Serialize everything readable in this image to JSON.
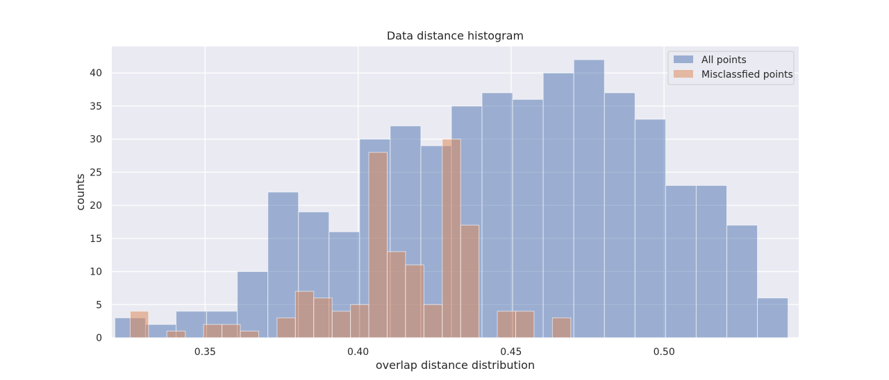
{
  "chart_data": {
    "type": "bar",
    "title": "Data distance histogram",
    "xlabel": "overlap distance distribution",
    "ylabel": "counts",
    "xlim": [
      0.3195,
      0.544
    ],
    "ylim": [
      0,
      44
    ],
    "x_ticks": [
      0.35,
      0.4,
      0.45,
      0.5
    ],
    "x_tick_labels": [
      "0.35",
      "0.40",
      "0.45",
      "0.50"
    ],
    "y_ticks": [
      0,
      5,
      10,
      15,
      20,
      25,
      30,
      35,
      40
    ],
    "y_tick_labels": [
      "0",
      "5",
      "10",
      "15",
      "20",
      "25",
      "30",
      "35",
      "40"
    ],
    "grid": true,
    "legend_position": "top-right",
    "colors": {
      "background": "#eaeaf2",
      "grid": "#ffffff",
      "all_points": "#4c72b0",
      "misclassified": "#dd8452"
    },
    "series": [
      {
        "name": "All points",
        "color": "#4c72b0",
        "bins": [
          {
            "x0": 0.3205,
            "x1": 0.3305,
            "count": 3
          },
          {
            "x0": 0.3305,
            "x1": 0.3405,
            "count": 2
          },
          {
            "x0": 0.3405,
            "x1": 0.3505,
            "count": 4
          },
          {
            "x0": 0.3505,
            "x1": 0.3605,
            "count": 4
          },
          {
            "x0": 0.3605,
            "x1": 0.3705,
            "count": 10
          },
          {
            "x0": 0.3705,
            "x1": 0.3805,
            "count": 22
          },
          {
            "x0": 0.3805,
            "x1": 0.3905,
            "count": 19
          },
          {
            "x0": 0.3905,
            "x1": 0.4005,
            "count": 16
          },
          {
            "x0": 0.4005,
            "x1": 0.4105,
            "count": 30
          },
          {
            "x0": 0.4105,
            "x1": 0.4205,
            "count": 32
          },
          {
            "x0": 0.4205,
            "x1": 0.4305,
            "count": 29
          },
          {
            "x0": 0.4305,
            "x1": 0.4405,
            "count": 35
          },
          {
            "x0": 0.4405,
            "x1": 0.4505,
            "count": 37
          },
          {
            "x0": 0.4505,
            "x1": 0.4605,
            "count": 36
          },
          {
            "x0": 0.4605,
            "x1": 0.4705,
            "count": 40
          },
          {
            "x0": 0.4705,
            "x1": 0.4805,
            "count": 42
          },
          {
            "x0": 0.4805,
            "x1": 0.4905,
            "count": 37
          },
          {
            "x0": 0.4905,
            "x1": 0.5005,
            "count": 33
          },
          {
            "x0": 0.5005,
            "x1": 0.5105,
            "count": 23
          },
          {
            "x0": 0.5105,
            "x1": 0.5205,
            "count": 23
          },
          {
            "x0": 0.5205,
            "x1": 0.5305,
            "count": 17
          },
          {
            "x0": 0.5305,
            "x1": 0.5405,
            "count": 6
          }
        ]
      },
      {
        "name": "Misclassfied points",
        "color": "#dd8452",
        "bins": [
          {
            "x0": 0.3255,
            "x1": 0.3315,
            "count": 4
          },
          {
            "x0": 0.3315,
            "x1": 0.3375,
            "count": 0
          },
          {
            "x0": 0.3375,
            "x1": 0.3435,
            "count": 1
          },
          {
            "x0": 0.3435,
            "x1": 0.3495,
            "count": 0
          },
          {
            "x0": 0.3495,
            "x1": 0.3555,
            "count": 2
          },
          {
            "x0": 0.3555,
            "x1": 0.3615,
            "count": 2
          },
          {
            "x0": 0.3615,
            "x1": 0.3675,
            "count": 1
          },
          {
            "x0": 0.3675,
            "x1": 0.3735,
            "count": 0
          },
          {
            "x0": 0.3735,
            "x1": 0.3795,
            "count": 3
          },
          {
            "x0": 0.3795,
            "x1": 0.3855,
            "count": 7
          },
          {
            "x0": 0.3855,
            "x1": 0.3915,
            "count": 6
          },
          {
            "x0": 0.3915,
            "x1": 0.3975,
            "count": 4
          },
          {
            "x0": 0.3975,
            "x1": 0.4035,
            "count": 5
          },
          {
            "x0": 0.4035,
            "x1": 0.4095,
            "count": 28
          },
          {
            "x0": 0.4095,
            "x1": 0.4155,
            "count": 13
          },
          {
            "x0": 0.4155,
            "x1": 0.4215,
            "count": 11
          },
          {
            "x0": 0.4215,
            "x1": 0.4275,
            "count": 5
          },
          {
            "x0": 0.4275,
            "x1": 0.4335,
            "count": 30
          },
          {
            "x0": 0.4335,
            "x1": 0.4395,
            "count": 17
          },
          {
            "x0": 0.4395,
            "x1": 0.4455,
            "count": 0
          },
          {
            "x0": 0.4455,
            "x1": 0.4515,
            "count": 4
          },
          {
            "x0": 0.4515,
            "x1": 0.4575,
            "count": 4
          },
          {
            "x0": 0.4575,
            "x1": 0.4635,
            "count": 0
          },
          {
            "x0": 0.4635,
            "x1": 0.4695,
            "count": 3
          }
        ]
      }
    ]
  }
}
